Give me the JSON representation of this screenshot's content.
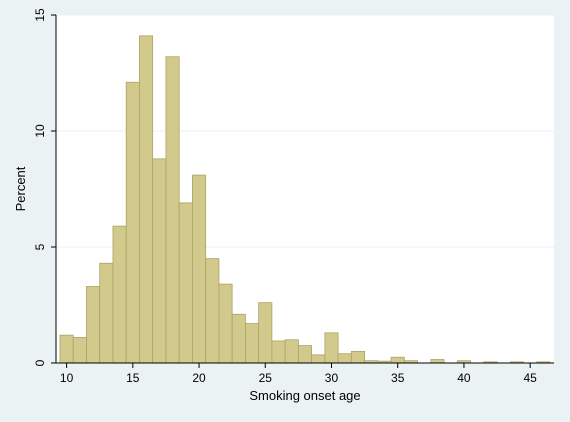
{
  "chart_data": {
    "type": "bar",
    "xlabel": "Smoking onset age",
    "ylabel": "Percent",
    "xlim": [
      9.2,
      46.8
    ],
    "ylim": [
      0,
      15
    ],
    "xticks": [
      10,
      15,
      20,
      25,
      30,
      35,
      40,
      45
    ],
    "yticks": [
      0,
      5,
      10,
      15
    ],
    "bin_width": 1,
    "bins": [
      {
        "x": 10,
        "value": 1.2
      },
      {
        "x": 11,
        "value": 1.1
      },
      {
        "x": 12,
        "value": 3.3
      },
      {
        "x": 13,
        "value": 4.3
      },
      {
        "x": 14,
        "value": 5.9
      },
      {
        "x": 15,
        "value": 12.1
      },
      {
        "x": 16,
        "value": 14.1
      },
      {
        "x": 17,
        "value": 8.8
      },
      {
        "x": 18,
        "value": 13.2
      },
      {
        "x": 19,
        "value": 6.9
      },
      {
        "x": 20,
        "value": 8.1
      },
      {
        "x": 21,
        "value": 4.5
      },
      {
        "x": 22,
        "value": 3.4
      },
      {
        "x": 23,
        "value": 2.1
      },
      {
        "x": 24,
        "value": 1.7
      },
      {
        "x": 25,
        "value": 2.6
      },
      {
        "x": 26,
        "value": 0.95
      },
      {
        "x": 27,
        "value": 1.0
      },
      {
        "x": 28,
        "value": 0.75
      },
      {
        "x": 29,
        "value": 0.35
      },
      {
        "x": 30,
        "value": 1.3
      },
      {
        "x": 31,
        "value": 0.4
      },
      {
        "x": 32,
        "value": 0.5
      },
      {
        "x": 33,
        "value": 0.1
      },
      {
        "x": 34,
        "value": 0.08
      },
      {
        "x": 35,
        "value": 0.25
      },
      {
        "x": 36,
        "value": 0.1
      },
      {
        "x": 38,
        "value": 0.15
      },
      {
        "x": 40,
        "value": 0.1
      },
      {
        "x": 42,
        "value": 0.05
      },
      {
        "x": 44,
        "value": 0.05
      },
      {
        "x": 46,
        "value": 0.05
      }
    ],
    "grid": true,
    "colors": {
      "background": "#eaf2f3",
      "plot_background": "#ffffff",
      "bar_fill": "#d2c98c",
      "bar_stroke": "#ada363",
      "grid": "#eaf2f3",
      "axis": "#000000"
    }
  }
}
